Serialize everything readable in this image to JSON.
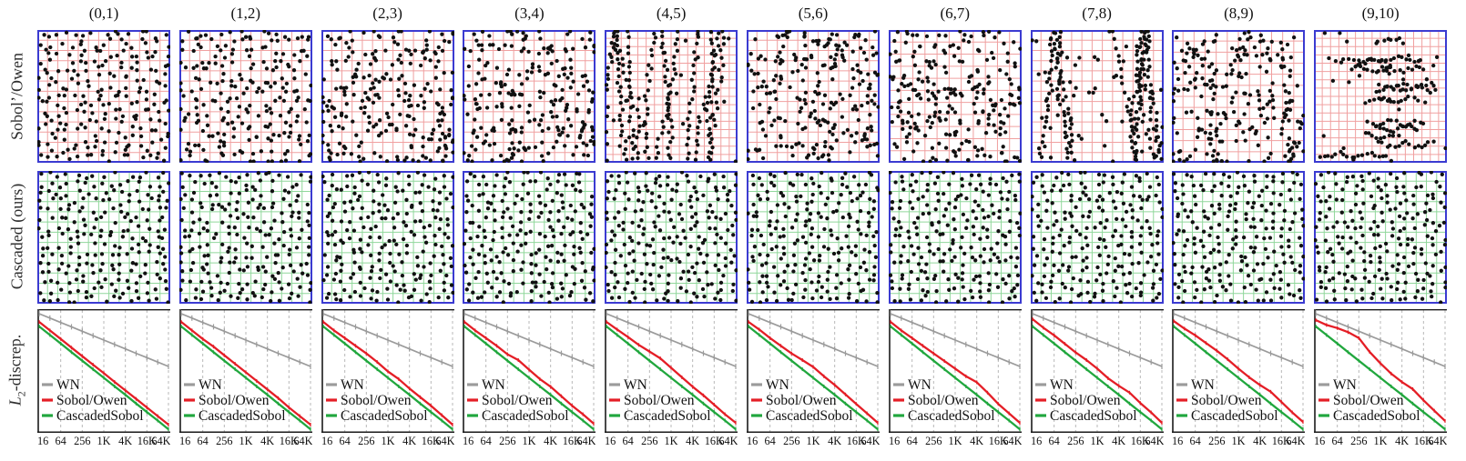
{
  "figure": {
    "titles": [
      "(0,1)",
      "(1,2)",
      "(2,3)",
      "(3,4)",
      "(4,5)",
      "(5,6)",
      "(6,7)",
      "(7,8)",
      "(8,9)",
      "(9,10)"
    ],
    "rows": {
      "sobol_label": "Sobol’/Owen",
      "cascaded_label": "Cascaded (ours)",
      "l2_main": "L",
      "l2_sub": "2",
      "l2_rest": "-discrep."
    }
  },
  "colors": {
    "scatter_border": "#3b3bd1",
    "grid_pink": "#f0a0a0",
    "grid_green": "#90d79b",
    "dot": "#111111",
    "wn": "#9b9b9b",
    "sobol_owen": "#e41e26",
    "cascaded_sobol": "#21a73e",
    "axis": "#1a1a1a",
    "grid_dashed": "#b8b8b8",
    "text": "#111111"
  },
  "scatter": {
    "point_radius": 2.15,
    "sobol_row": [
      {
        "pattern": "stratified",
        "seed": 101,
        "grid": 13,
        "jitter": 1.05
      },
      {
        "pattern": "stratified",
        "seed": 202,
        "grid": 13,
        "jitter": 1.15
      },
      {
        "pattern": "random",
        "seed": 303,
        "grid": 13
      },
      {
        "pattern": "random",
        "seed": 404,
        "grid": 13
      },
      {
        "pattern": "vstreaks",
        "seed": 505,
        "grid": 16,
        "streaks": 11,
        "scatter": 20
      },
      {
        "pattern": "random",
        "seed": 606,
        "grid": 13
      },
      {
        "pattern": "random",
        "seed": 707,
        "grid": 11
      },
      {
        "pattern": "vstreaks",
        "seed": 808,
        "grid": 13,
        "streaks": 9,
        "scatter": 55
      },
      {
        "pattern": "random",
        "seed": 909,
        "grid": 12
      },
      {
        "pattern": "hstreaks",
        "seed": 111,
        "grid": 16,
        "clusters": 13,
        "scatter": 24
      }
    ],
    "cascaded_row": [
      {
        "pattern": "stratified",
        "seed": 21,
        "grid": 13,
        "jitter": 0.85
      },
      {
        "pattern": "stratified",
        "seed": 22,
        "grid": 13,
        "jitter": 0.85
      },
      {
        "pattern": "stratified",
        "seed": 23,
        "grid": 13,
        "jitter": 0.85
      },
      {
        "pattern": "stratified",
        "seed": 24,
        "grid": 13,
        "jitter": 0.85
      },
      {
        "pattern": "stratified",
        "seed": 25,
        "grid": 13,
        "jitter": 0.85
      },
      {
        "pattern": "stratified",
        "seed": 26,
        "grid": 13,
        "jitter": 0.85
      },
      {
        "pattern": "stratified",
        "seed": 27,
        "grid": 13,
        "jitter": 0.85
      },
      {
        "pattern": "stratified",
        "seed": 28,
        "grid": 13,
        "jitter": 0.85
      },
      {
        "pattern": "stratified",
        "seed": 29,
        "grid": 13,
        "jitter": 0.85
      },
      {
        "pattern": "stratified",
        "seed": 30,
        "grid": 13,
        "jitter": 0.85
      }
    ]
  },
  "chart_data": {
    "type": "line",
    "x": [
      16,
      32,
      64,
      128,
      256,
      512,
      1024,
      2048,
      4096,
      8192,
      16384,
      32768,
      65536
    ],
    "x_scale": "log2",
    "x_tick_labels": [
      "16",
      "64",
      "256",
      "1K",
      "4K",
      "16K",
      "64K"
    ],
    "ylabel": "L2-discrepancy (log scale, y axis unlabeled)",
    "y_units": "normalized plot depth: 0 = top of plot frame, 1 = bottom",
    "grid": "dashed vertical lines at labeled ticks",
    "legend_position": "lower-left",
    "legend": [
      "WN",
      "Sobol/Owen",
      "CascadedSobol"
    ],
    "wn": [
      0.037,
      0.072,
      0.108,
      0.143,
      0.179,
      0.215,
      0.25,
      0.285,
      0.321,
      0.357,
      0.392,
      0.428,
      0.463
    ],
    "cascaded_sobol": [
      0.14,
      0.209,
      0.278,
      0.348,
      0.417,
      0.486,
      0.555,
      0.624,
      0.693,
      0.763,
      0.832,
      0.901,
      0.971
    ],
    "sobol_owen_per_panel": [
      [
        0.103,
        0.172,
        0.241,
        0.311,
        0.38,
        0.449,
        0.518,
        0.588,
        0.657,
        0.726,
        0.795,
        0.865,
        0.934
      ],
      [
        0.103,
        0.172,
        0.241,
        0.303,
        0.373,
        0.442,
        0.511,
        0.58,
        0.649,
        0.719,
        0.795,
        0.865,
        0.934
      ],
      [
        0.103,
        0.172,
        0.234,
        0.296,
        0.358,
        0.427,
        0.504,
        0.565,
        0.642,
        0.712,
        0.781,
        0.857,
        0.934
      ],
      [
        0.103,
        0.172,
        0.234,
        0.296,
        0.365,
        0.412,
        0.489,
        0.565,
        0.627,
        0.704,
        0.781,
        0.85,
        0.926
      ],
      [
        0.103,
        0.165,
        0.226,
        0.289,
        0.343,
        0.398,
        0.474,
        0.551,
        0.627,
        0.697,
        0.773,
        0.85,
        0.919
      ],
      [
        0.103,
        0.165,
        0.234,
        0.296,
        0.358,
        0.412,
        0.467,
        0.543,
        0.613,
        0.69,
        0.766,
        0.843,
        0.919
      ],
      [
        0.103,
        0.172,
        0.234,
        0.296,
        0.358,
        0.42,
        0.481,
        0.543,
        0.591,
        0.675,
        0.766,
        0.843,
        0.919
      ],
      [
        0.081,
        0.15,
        0.212,
        0.281,
        0.35,
        0.412,
        0.481,
        0.558,
        0.62,
        0.675,
        0.759,
        0.835,
        0.919
      ],
      [
        0.096,
        0.157,
        0.212,
        0.274,
        0.336,
        0.405,
        0.481,
        0.551,
        0.613,
        0.668,
        0.751,
        0.835,
        0.912
      ],
      [
        0.088,
        0.128,
        0.153,
        0.186,
        0.233,
        0.346,
        0.438,
        0.521,
        0.59,
        0.646,
        0.737,
        0.821,
        0.904
      ]
    ]
  }
}
